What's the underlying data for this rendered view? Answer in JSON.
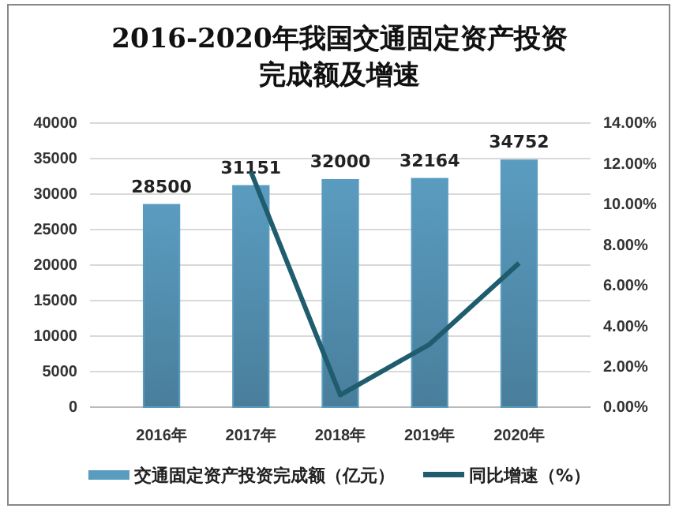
{
  "chart_data": {
    "type": "bar",
    "title": "2016-2020年我国交通固定资产投资完成额及增速",
    "categories": [
      "2016年",
      "2017年",
      "2018年",
      "2019年",
      "2020年"
    ],
    "series": [
      {
        "name": "交通固定资产投资完成额（亿元）",
        "color": "#5a9cc0",
        "values": [
          28500,
          31151,
          32000,
          32164,
          34752
        ],
        "value_labels": [
          "28500",
          "31151",
          "32000",
          "32164",
          "34752"
        ]
      },
      {
        "name": "同比增速（%）",
        "type": "line",
        "axis": "y2",
        "color": "#1f5c6e",
        "values": [
          null,
          11.6,
          0.6,
          3.1,
          7.1
        ]
      }
    ],
    "ylim": [
      0,
      40000
    ],
    "yticks": [
      0,
      5000,
      10000,
      15000,
      20000,
      25000,
      30000,
      35000,
      40000
    ],
    "y2lim": [
      0,
      14
    ],
    "y2ticks": [
      {
        "value": 0,
        "label": "0.00%"
      },
      {
        "value": 2,
        "label": "2.00%"
      },
      {
        "value": 4,
        "label": "4.00%"
      },
      {
        "value": 6,
        "label": "6.00%"
      },
      {
        "value": 8,
        "label": "8.00%"
      },
      {
        "value": 10,
        "label": "10.00%"
      },
      {
        "value": 12,
        "label": "12.00%"
      },
      {
        "value": 14,
        "label": "14.00%"
      }
    ],
    "grid": "y",
    "legend": "bottom",
    "marker": "none",
    "line_style": "solid"
  }
}
